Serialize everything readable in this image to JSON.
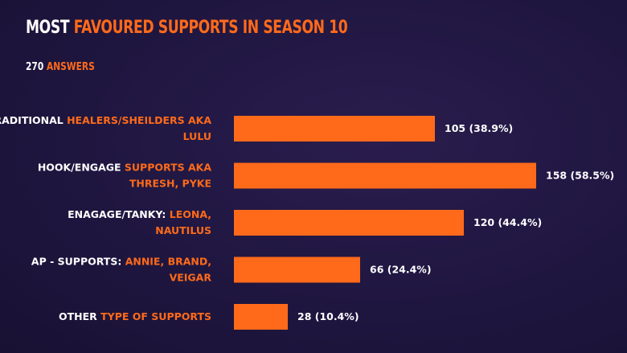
{
  "colors": {
    "accent": "#ff6a1a",
    "text": "#ffffff",
    "background": "#1f1640",
    "bar": "#ff6a1a"
  },
  "header": {
    "title_part1": "MOST ",
    "title_part2": "FAVOURED SUPPORTS IN SEASON 10",
    "answers_count": "270 ",
    "answers_label": "ANSWERS"
  },
  "chart_data": {
    "type": "bar",
    "orientation": "horizontal",
    "title": "MOST FAVOURED SUPPORTS IN SEASON 10",
    "subtitle": "270 ANSWERS",
    "categories": [
      "TRADITIONAL HEALERS/SHEILDERS AKA LULU",
      "HOOK/ENGAGE SUPPORTS AKA THRESH, PYKE",
      "ENAGAGE/TANKY: LEONA, NAUTILUS",
      "AP - SUPPORTS: ANNIE, BRAND, VEIGAR",
      "OTHER TYPE OF SUPPORTS"
    ],
    "category_labels": [
      [
        [
          {
            "t": "TRADITIONAL ",
            "c": "white"
          },
          {
            "t": "HEALERS/SHEILDERS AKA",
            "c": "accent"
          }
        ],
        [
          {
            "t": "LULU",
            "c": "accent"
          }
        ]
      ],
      [
        [
          {
            "t": "HOOK/ENGAGE ",
            "c": "white"
          },
          {
            "t": "SUPPORTS AKA",
            "c": "accent"
          }
        ],
        [
          {
            "t": "THRESH, PYKE",
            "c": "accent"
          }
        ]
      ],
      [
        [
          {
            "t": "ENAGAGE/TANKY: ",
            "c": "white"
          },
          {
            "t": "LEONA,",
            "c": "accent"
          }
        ],
        [
          {
            "t": "NAUTILUS",
            "c": "accent"
          }
        ]
      ],
      [
        [
          {
            "t": "AP - SUPPORTS: ",
            "c": "white"
          },
          {
            "t": "ANNIE, BRAND,",
            "c": "accent"
          }
        ],
        [
          {
            "t": "VEIGAR",
            "c": "accent"
          }
        ]
      ],
      [
        [
          {
            "t": "OTHER ",
            "c": "white"
          },
          {
            "t": "TYPE OF SUPPORTS",
            "c": "accent"
          }
        ]
      ]
    ],
    "values": [
      105,
      158,
      120,
      66,
      28
    ],
    "value_labels": [
      "105 (38.9%)",
      "158 (58.5%)",
      "120 (44.4%)",
      "66 (24.4%)",
      "28 (10.4%)"
    ],
    "xlim": [
      0,
      158
    ],
    "grid": false,
    "legend": "none"
  }
}
